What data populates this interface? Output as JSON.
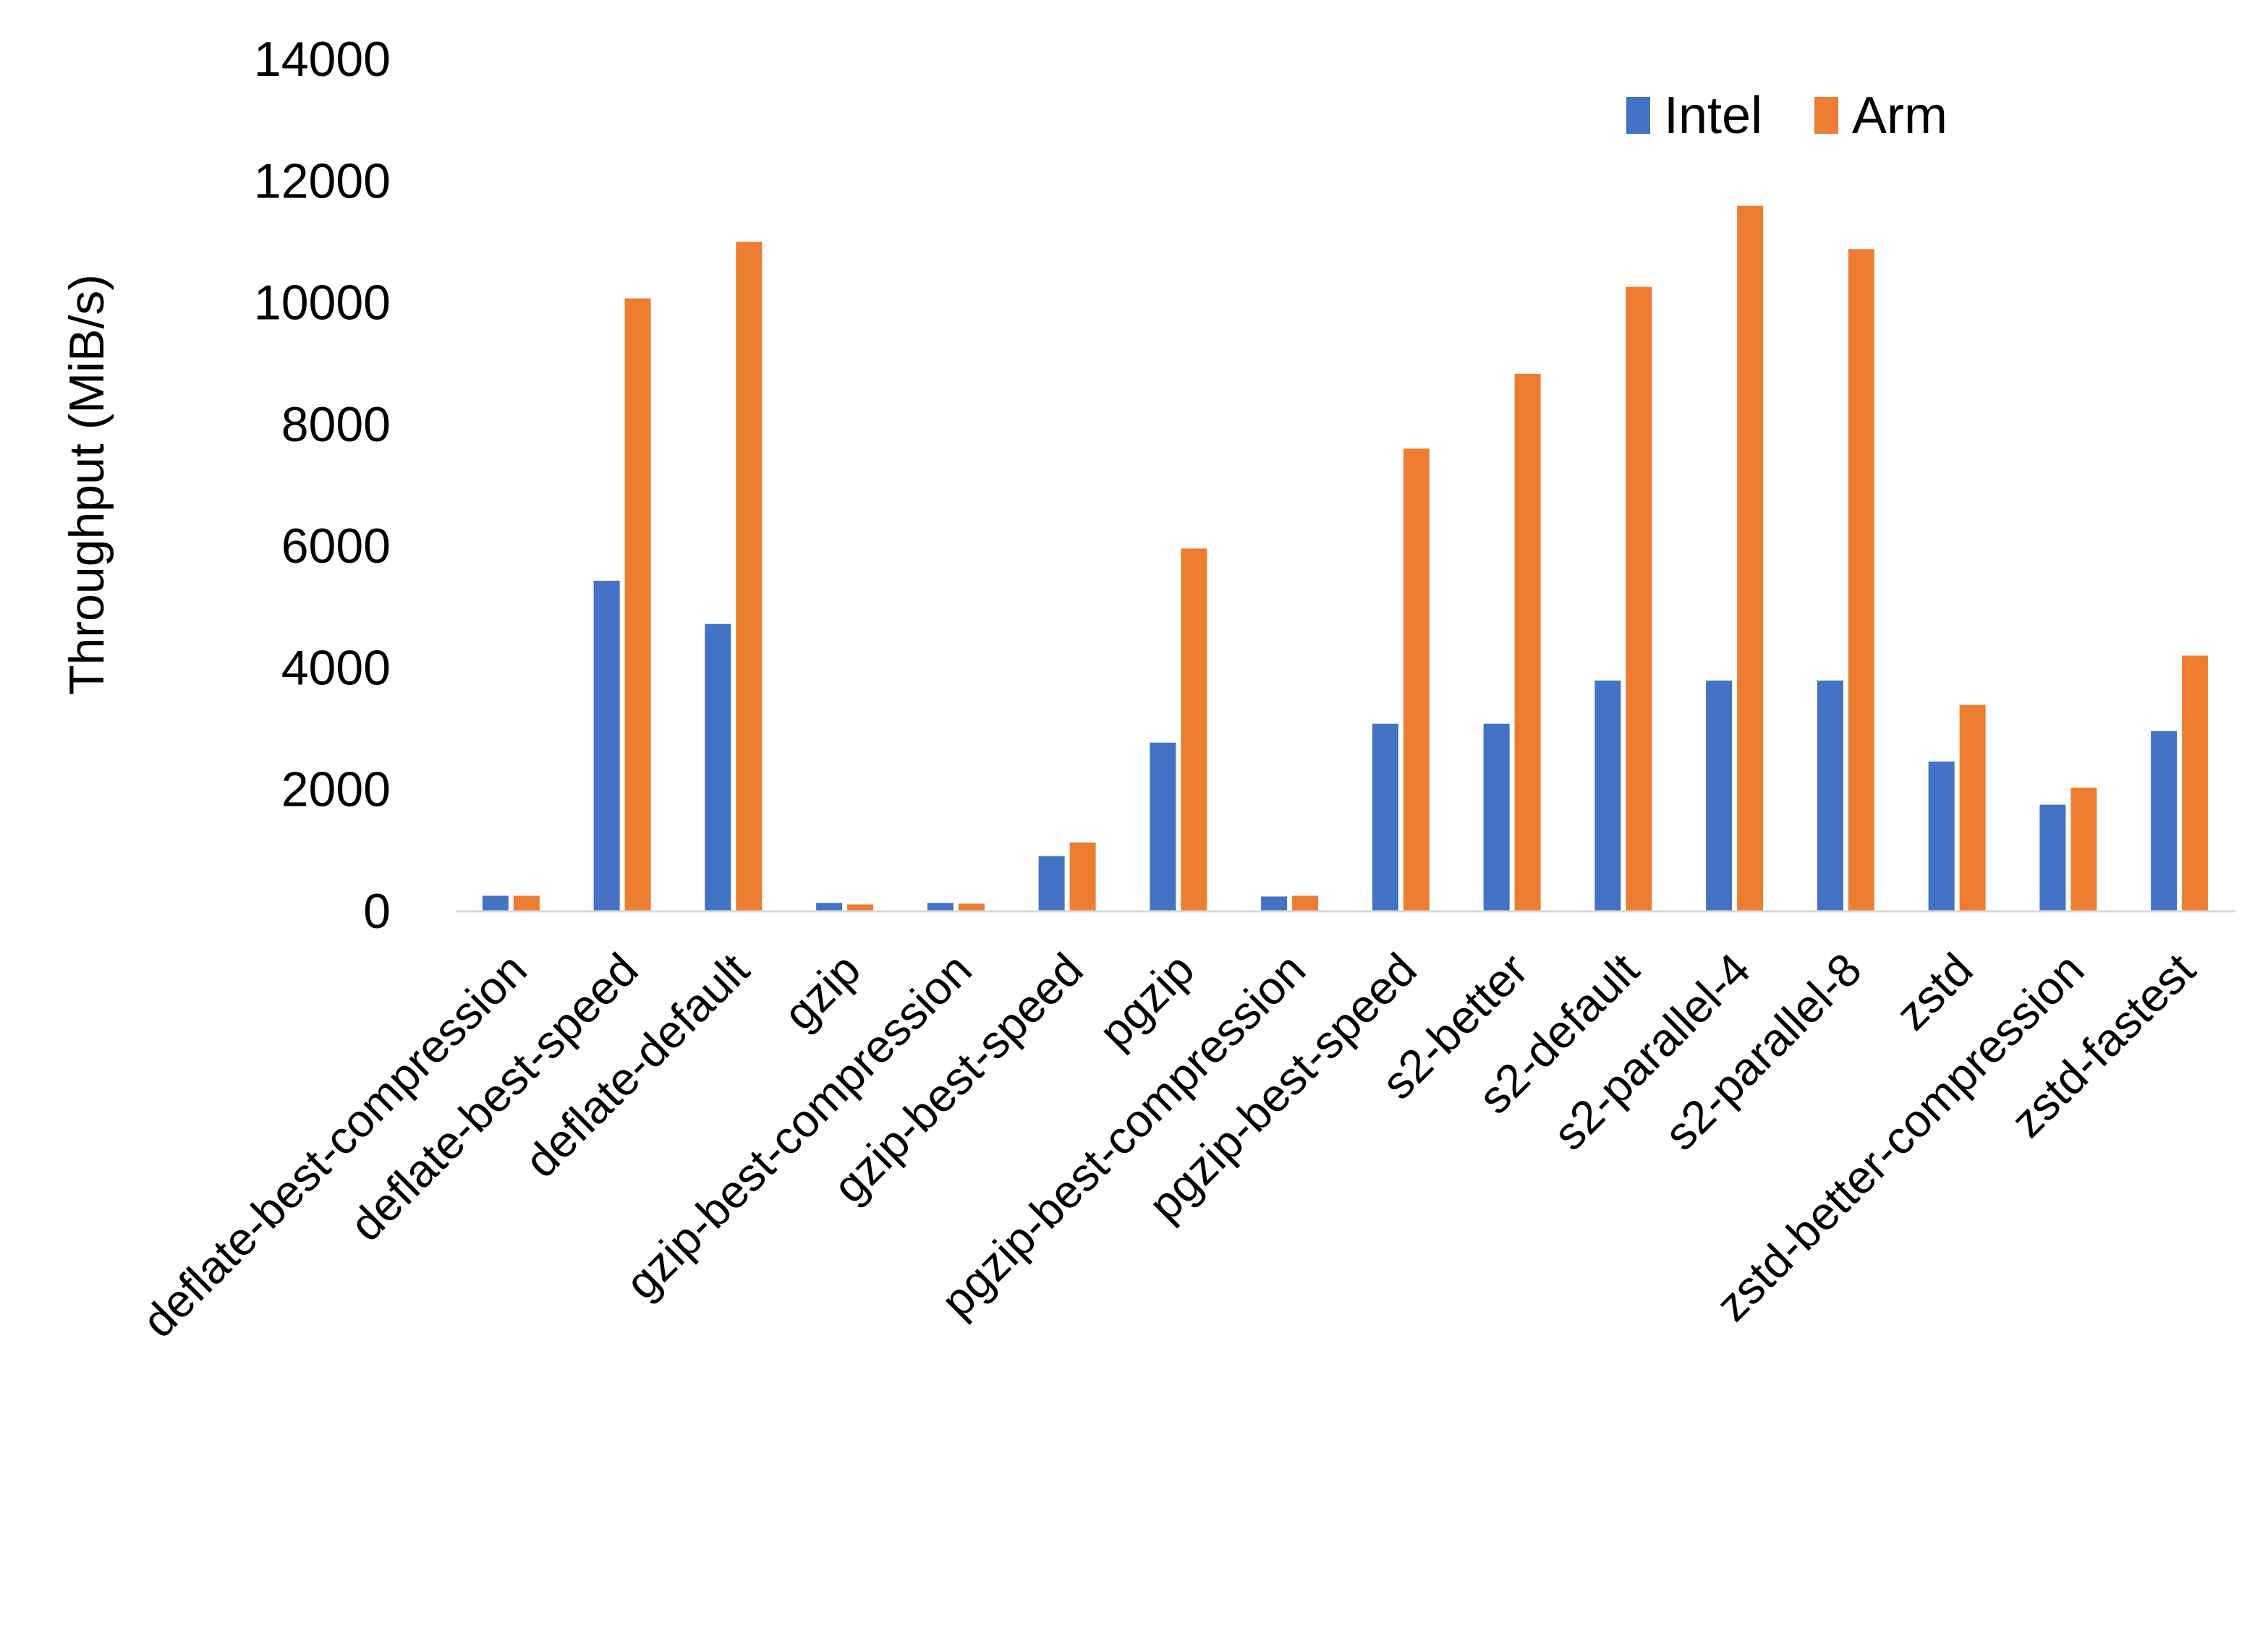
{
  "chart_data": {
    "type": "bar",
    "title": "",
    "xlabel": "",
    "ylabel": "Throughput (MiB/s)",
    "ylim": [
      0,
      14000
    ],
    "yticks": [
      0,
      2000,
      4000,
      6000,
      8000,
      10000,
      12000,
      14000
    ],
    "grid": false,
    "legend": "top-right",
    "categories": [
      "deflate-best-compression",
      "deflate-best-speed",
      "deflate-default",
      "gzip",
      "gzip-best-compression",
      "gzip-best-speed",
      "pgzip",
      "pgzip-best-compression",
      "pgzip-best-speed",
      "s2-better",
      "s2-default",
      "s2-parallel-4",
      "s2-parallel-8",
      "zstd",
      "zstd-better-compression",
      "zstd-fastest"
    ],
    "series": [
      {
        "name": "Intel",
        "color": "#4472C4",
        "values": [
          244,
          5420,
          4710,
          126,
          126,
          895,
          2760,
          232,
          3070,
          3070,
          3780,
          3780,
          3780,
          2450,
          1740,
          2950
        ]
      },
      {
        "name": "Arm",
        "color": "#ED7D31",
        "values": [
          244,
          10060,
          10990,
          102,
          114,
          1119,
          5950,
          244,
          7590,
          8820,
          10250,
          11580,
          10870,
          3380,
          2020,
          4190
        ]
      }
    ]
  }
}
